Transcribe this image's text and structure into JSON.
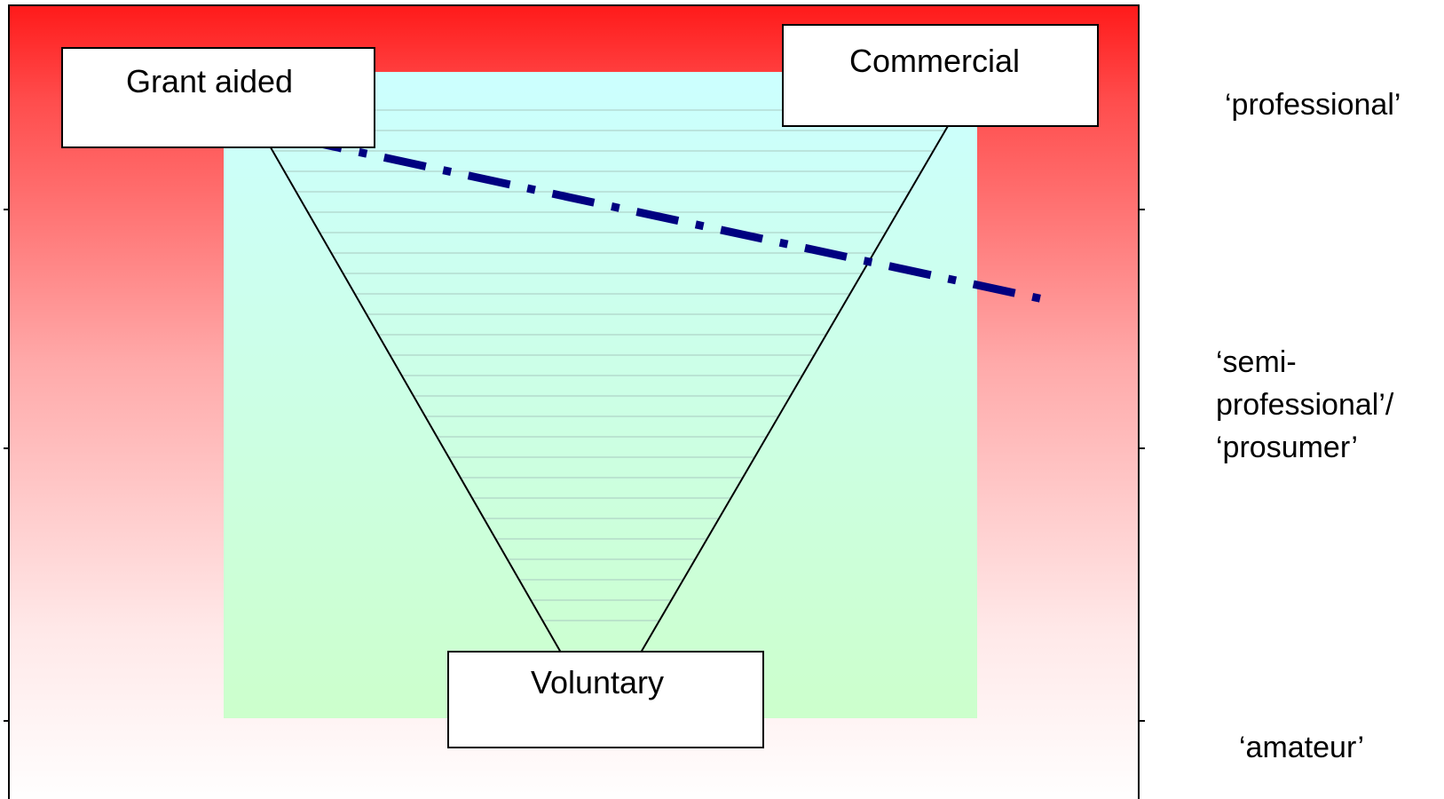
{
  "diagram": {
    "boxes": {
      "grant_aided": "Grant aided",
      "commercial": "Commercial",
      "voluntary": "Voluntary"
    },
    "levels": {
      "professional": "‘professional’",
      "semi_professional_line1": "‘semi-",
      "semi_professional_line2": "professional’/",
      "semi_professional_line3": "‘prosumer’",
      "amateur": "‘amateur’"
    }
  },
  "colors": {
    "frame_top": "#ff1a1a",
    "frame_bottom": "#ffffff",
    "inner_top": "#ccffff",
    "inner_bottom": "#ccffcc",
    "dashed_line": "#000080",
    "outline": "#000000"
  }
}
